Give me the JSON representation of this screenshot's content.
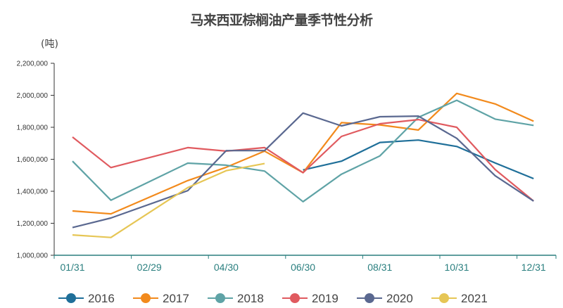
{
  "chart_data": {
    "type": "line",
    "title": "马来西亚棕榈油产量季节性分析",
    "ylabel": "(吨)",
    "xlabel": "",
    "ylim": [
      1000000,
      2200000
    ],
    "yticks": [
      "1,000,000",
      "1,200,000",
      "1,400,000",
      "1,600,000",
      "1,800,000",
      "2,000,000",
      "2,200,000"
    ],
    "x_labels": [
      "01/31",
      "",
      "02/29",
      "",
      "04/30",
      "",
      "06/30",
      "",
      "08/31",
      "",
      "10/31",
      "",
      "12/31"
    ],
    "grid": false,
    "legend_position": "bottom",
    "series": [
      {
        "name": "2016",
        "color": "#1f6f99",
        "values": [
          null,
          null,
          null,
          null,
          null,
          null,
          1533000,
          1588000,
          1705000,
          1720000,
          1680000,
          1577000,
          1479000
        ]
      },
      {
        "name": "2017",
        "color": "#f28a1c",
        "values": [
          1277000,
          1259000,
          null,
          1467000,
          1550000,
          1651000,
          1516000,
          1829000,
          1815000,
          1783000,
          2012000,
          1946000,
          1838000
        ]
      },
      {
        "name": "2018",
        "color": "#5fa3a6",
        "values": [
          1588000,
          1344000,
          null,
          1576000,
          1563000,
          1526000,
          1335000,
          1507000,
          1621000,
          1862000,
          1969000,
          1851000,
          1812000
        ]
      },
      {
        "name": "2019",
        "color": "#e05a5f",
        "values": [
          1739000,
          1548000,
          null,
          1673000,
          1651000,
          1673000,
          1516000,
          1743000,
          1822000,
          1848000,
          1800000,
          1536000,
          1339000
        ]
      },
      {
        "name": "2020",
        "color": "#5a6890",
        "values": [
          1173000,
          1233000,
          null,
          1404000,
          1654000,
          1654000,
          1889000,
          1809000,
          1866000,
          1870000,
          1731000,
          1497000,
          1339000
        ]
      },
      {
        "name": "2021",
        "color": "#e6c655",
        "values": [
          1127000,
          1111000,
          null,
          1423000,
          1529000,
          1573000,
          null,
          null,
          null,
          null,
          null,
          null,
          null
        ]
      }
    ]
  }
}
